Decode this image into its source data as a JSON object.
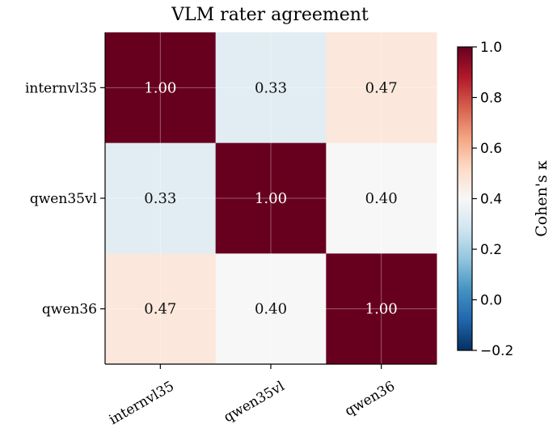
{
  "chart_data": {
    "type": "heatmap",
    "title": "VLM rater agreement",
    "rows": [
      "internvl35",
      "qwen35vl",
      "qwen36"
    ],
    "cols": [
      "internvl35",
      "qwen35vl",
      "qwen36"
    ],
    "values": [
      [
        1.0,
        0.33,
        0.47
      ],
      [
        0.33,
        1.0,
        0.4
      ],
      [
        0.47,
        0.4,
        1.0
      ]
    ],
    "cell_labels": [
      [
        "1.00",
        "0.33",
        "0.47"
      ],
      [
        "0.33",
        "1.00",
        "0.40"
      ],
      [
        "0.47",
        "0.40",
        "1.00"
      ]
    ],
    "colormap": "RdBu_r",
    "vmin": -0.2,
    "vmax": 1.0,
    "grid": true,
    "colorbar": {
      "label": "Cohen's κ",
      "ticks": [
        -0.2,
        0.0,
        0.2,
        0.4,
        0.6,
        0.8,
        1.0
      ],
      "tick_labels": [
        "−0.2",
        "0.0",
        "0.2",
        "0.4",
        "0.6",
        "0.8",
        "1.0"
      ]
    }
  }
}
